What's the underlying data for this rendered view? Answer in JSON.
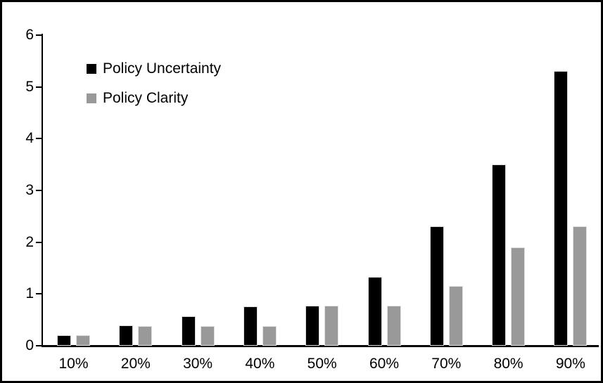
{
  "chart_data": {
    "type": "bar",
    "title": "",
    "xlabel": "",
    "ylabel": "",
    "categories": [
      "10%",
      "20%",
      "30%",
      "40%",
      "50%",
      "60%",
      "70%",
      "80%",
      "90%"
    ],
    "series": [
      {
        "name": "Policy Uncertainty",
        "color": "#000000",
        "values": [
          0.2,
          0.4,
          0.57,
          0.76,
          0.78,
          1.33,
          2.3,
          3.5,
          5.3
        ]
      },
      {
        "name": "Policy Clarity",
        "color": "#999999",
        "values": [
          0.2,
          0.38,
          0.38,
          0.38,
          0.77,
          0.77,
          1.15,
          1.9,
          2.3
        ]
      }
    ],
    "ylim": [
      0,
      6
    ],
    "y_ticks": [
      0,
      1,
      2,
      3,
      4,
      5,
      6
    ],
    "grid": false,
    "legend_position": "inside-top-left",
    "frame_border_color": "#000000",
    "background_color": "#ffffff"
  }
}
